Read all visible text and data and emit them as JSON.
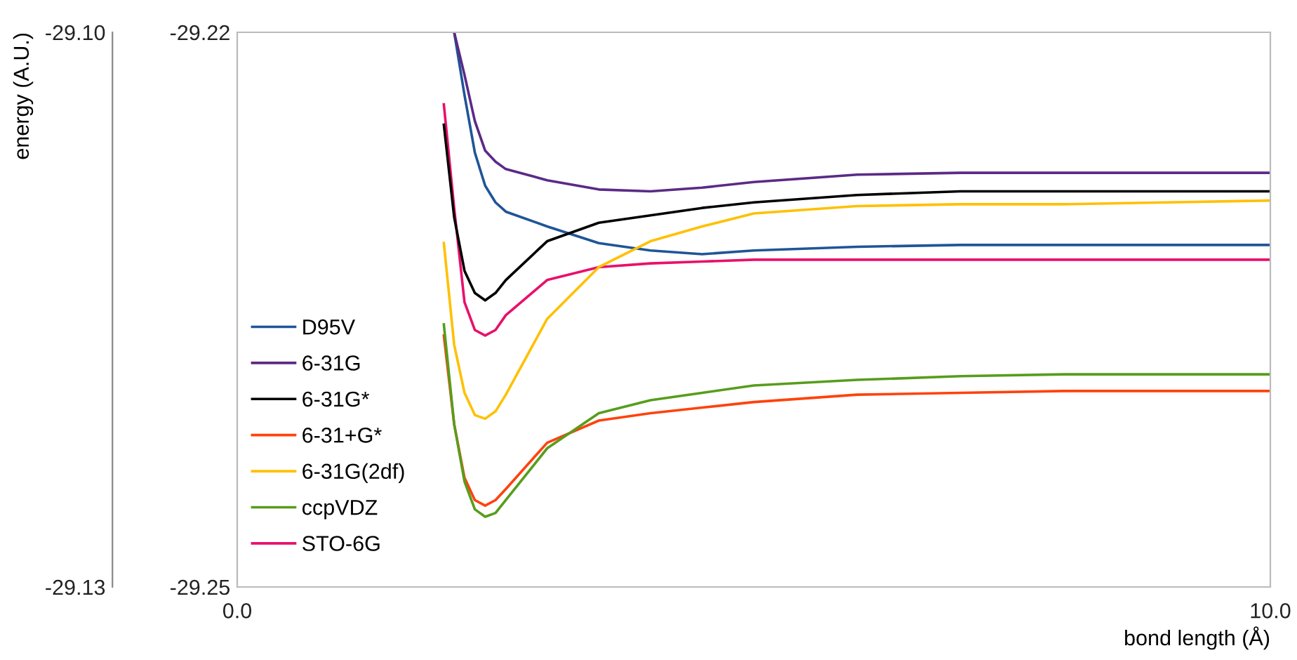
{
  "chart_data": {
    "type": "line",
    "xlabel": "bond length (Å)",
    "ylabel": "energy (A.U.)",
    "xlim": [
      0,
      10
    ],
    "xticks": [
      {
        "value": 0,
        "label": "0.0"
      },
      {
        "value": 10,
        "label": "10.0"
      }
    ],
    "y2lim": [
      -29.25,
      -29.22
    ],
    "y2ticks": [
      -29.22,
      -29.25
    ],
    "ylim": [
      -29.13,
      -29.1
    ],
    "yticks": [
      {
        "value": -29.1,
        "label": "-29.10"
      },
      {
        "value": -29.13,
        "label": "-29.13"
      }
    ],
    "x": [
      2.0,
      2.1,
      2.2,
      2.3,
      2.4,
      2.5,
      2.6,
      3.0,
      3.5,
      4.0,
      4.5,
      5.0,
      6.0,
      7.0,
      8.0,
      9.0,
      10.0
    ],
    "grid": false,
    "legend": "left",
    "marker": "none",
    "line_style": "solid",
    "series": [
      {
        "name": "D95V",
        "color": "#1f5597",
        "axis": "y2",
        "x": [
          2.1,
          2.2,
          2.3,
          2.4,
          2.5,
          2.6,
          3.0,
          3.5,
          4.0,
          4.5,
          5.0,
          6.0,
          7.0,
          8.0,
          9.0,
          10.0
        ],
        "values": [
          -29.22,
          -29.2234,
          -29.2265,
          -29.2283,
          -29.2292,
          -29.2297,
          -29.2305,
          -29.2314,
          -29.2318,
          -29.232,
          -29.2318,
          -29.2316,
          -29.2315,
          -29.2315,
          -29.2315,
          -29.2315
        ]
      },
      {
        "name": "6-31G",
        "color": "#5b2a86",
        "axis": "y2",
        "x": [
          2.1,
          2.2,
          2.3,
          2.4,
          2.5,
          2.6,
          3.0,
          3.5,
          4.0,
          4.5,
          5.0,
          6.0,
          7.0,
          8.0,
          9.0,
          10.0
        ],
        "values": [
          -29.22,
          -29.2223,
          -29.2248,
          -29.2264,
          -29.227,
          -29.2274,
          -29.228,
          -29.2285,
          -29.2286,
          -29.2284,
          -29.2281,
          -29.2277,
          -29.2276,
          -29.2276,
          -29.2276,
          -29.2276
        ]
      },
      {
        "name": "6-31G*",
        "color": "#000000",
        "axis": "y2",
        "values": [
          -29.225,
          -29.23,
          -29.2329,
          -29.2341,
          -29.2345,
          -29.2341,
          -29.2334,
          -29.2313,
          -29.2303,
          -29.2299,
          -29.2295,
          -29.2292,
          -29.2288,
          -29.2286,
          -29.2286,
          -29.2286,
          -29.2286
        ]
      },
      {
        "name": "6-31+G*",
        "color": "#ff420e",
        "axis": "y2",
        "values": [
          -29.2364,
          -29.2412,
          -29.2441,
          -29.2453,
          -29.2456,
          -29.2453,
          -29.2447,
          -29.2422,
          -29.241,
          -29.2406,
          -29.2403,
          -29.24,
          -29.2396,
          -29.2395,
          -29.2394,
          -29.2394,
          -29.2394
        ]
      },
      {
        "name": "6-31G(2df)",
        "color": "#ffc000",
        "axis": "y2",
        "values": [
          -29.2314,
          -29.2369,
          -29.2395,
          -29.2407,
          -29.2409,
          -29.2405,
          -29.2396,
          -29.2355,
          -29.2327,
          -29.2313,
          -29.2305,
          -29.2298,
          -29.2294,
          -29.2293,
          -29.2293,
          -29.2292,
          -29.2291
        ]
      },
      {
        "name": "ccpVDZ",
        "color": "#579d1c",
        "axis": "y2",
        "values": [
          -29.2358,
          -29.2412,
          -29.2443,
          -29.2458,
          -29.2462,
          -29.246,
          -29.2453,
          -29.2425,
          -29.2406,
          -29.2399,
          -29.2395,
          -29.2391,
          -29.2388,
          -29.2386,
          -29.2385,
          -29.2385,
          -29.2385
        ]
      },
      {
        "name": "STO-6G",
        "color": "#e8106c",
        "values": [
          -29.1039,
          -29.1095,
          -29.1146,
          -29.1161,
          -29.1164,
          -29.1161,
          -29.1153,
          -29.1134,
          -29.1127,
          -29.1125,
          -29.1124,
          -29.1123,
          -29.1123,
          -29.1123,
          -29.1123,
          -29.1123,
          -29.1123
        ]
      }
    ]
  }
}
